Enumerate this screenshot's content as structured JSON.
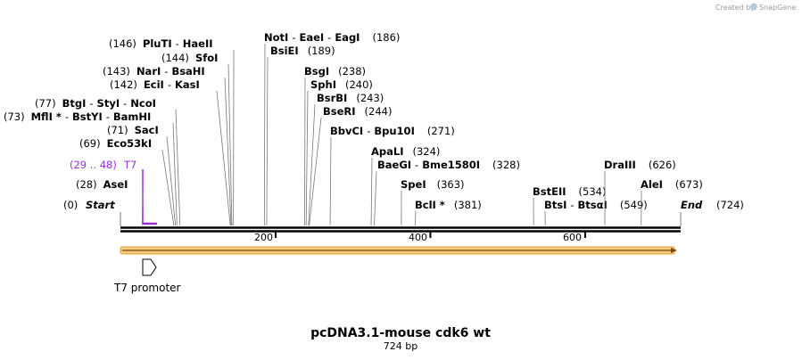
{
  "credit": {
    "text": "Created by",
    "brand": "SnapGene"
  },
  "map": {
    "title": "pcDNA3.1-mouse cdk6 wt",
    "length_label": "724 bp",
    "length": 724,
    "ticks": [
      {
        "pos": 200,
        "label": "200"
      },
      {
        "pos": 400,
        "label": "400"
      },
      {
        "pos": 600,
        "label": "600"
      }
    ],
    "start": {
      "name": "Start",
      "pos_label": "(0)"
    },
    "end": {
      "name": "End",
      "pos_label": "(724)"
    },
    "primer": {
      "label": "T7",
      "range_label": "(29 .. 48)",
      "start": 29,
      "end": 48
    },
    "feature": {
      "label": "T7 promoter",
      "start": 29,
      "end": 48
    },
    "sites": [
      {
        "id": "asei",
        "pos_label": "(28)",
        "names": [
          "AseI"
        ],
        "pos": 28
      },
      {
        "id": "eco53ki",
        "pos_label": "(69)",
        "names": [
          "Eco53kI"
        ],
        "pos": 69
      },
      {
        "id": "saci",
        "pos_label": "(71)",
        "names": [
          "SacI"
        ],
        "pos": 71
      },
      {
        "id": "mfli",
        "pos_label": "(73)",
        "names": [
          "MflI *",
          "BstYI",
          "BamHI"
        ],
        "pos": 73
      },
      {
        "id": "btgi",
        "pos_label": "(77)",
        "names": [
          "BtgI",
          "StyI",
          "NcoI"
        ],
        "pos": 77
      },
      {
        "id": "ecii",
        "pos_label": "(142)",
        "names": [
          "EciI",
          "KasI"
        ],
        "pos": 142
      },
      {
        "id": "nari",
        "pos_label": "(143)",
        "names": [
          "NarI",
          "BsaHI"
        ],
        "pos": 143
      },
      {
        "id": "sfoi",
        "pos_label": "(144)",
        "names": [
          "SfoI"
        ],
        "pos": 144
      },
      {
        "id": "pluti",
        "pos_label": "(146)",
        "names": [
          "PluTI",
          "HaeII"
        ],
        "pos": 146
      },
      {
        "id": "bsiei",
        "pos_label": "(189)",
        "names": [
          "BsiEI"
        ],
        "pos": 189
      },
      {
        "id": "noti",
        "pos_label": "(186)",
        "names": [
          "NotI",
          "EaeI",
          "EagI"
        ],
        "pos": 186
      },
      {
        "id": "bsgi",
        "pos_label": "(238)",
        "names": [
          "BsgI"
        ],
        "pos": 238
      },
      {
        "id": "sphi",
        "pos_label": "(240)",
        "names": [
          "SphI"
        ],
        "pos": 240
      },
      {
        "id": "bsrbi",
        "pos_label": "(243)",
        "names": [
          "BsrBI"
        ],
        "pos": 243
      },
      {
        "id": "bseri",
        "pos_label": "(244)",
        "names": [
          "BseRI"
        ],
        "pos": 244
      },
      {
        "id": "bbvci",
        "pos_label": "(271)",
        "names": [
          "BbvCI",
          "Bpu10I"
        ],
        "pos": 271
      },
      {
        "id": "apali",
        "pos_label": "(324)",
        "names": [
          "ApaLI"
        ],
        "pos": 324
      },
      {
        "id": "baegi",
        "pos_label": "(328)",
        "names": [
          "BaeGI",
          "Bme1580I"
        ],
        "pos": 328
      },
      {
        "id": "spei",
        "pos_label": "(363)",
        "names": [
          "SpeI"
        ],
        "pos": 363
      },
      {
        "id": "bcli",
        "pos_label": "(381)",
        "names": [
          "BclI *"
        ],
        "pos": 381
      },
      {
        "id": "bsteii",
        "pos_label": "(534)",
        "names": [
          "BstEII"
        ],
        "pos": 534
      },
      {
        "id": "btsi",
        "pos_label": "(549)",
        "names": [
          "BtsI",
          "BtsαI"
        ],
        "pos": 549
      },
      {
        "id": "draiii",
        "pos_label": "(626)",
        "names": [
          "DraIII"
        ],
        "pos": 626
      },
      {
        "id": "alei",
        "pos_label": "(673)",
        "names": [
          "AleI"
        ],
        "pos": 673
      }
    ]
  },
  "colors": {
    "primer": "#9b30d9",
    "orf_fill": "#f5c97a",
    "orf_stroke": "#e3a13b"
  }
}
